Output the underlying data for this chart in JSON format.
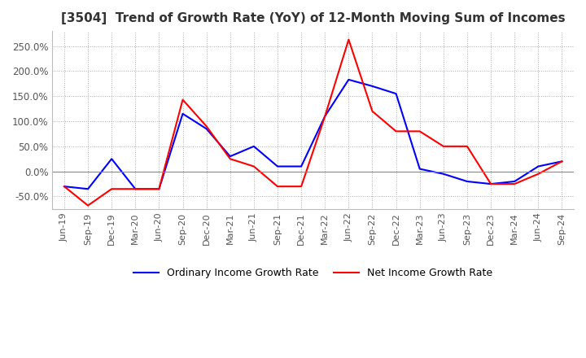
{
  "title": "[3504]  Trend of Growth Rate (YoY) of 12-Month Moving Sum of Incomes",
  "ylim": [
    -75,
    280
  ],
  "yticks": [
    -50,
    0,
    50,
    100,
    150,
    200,
    250
  ],
  "ytick_labels": [
    "-50.0%",
    "0.0%",
    "50.0%",
    "100.0%",
    "150.0%",
    "200.0%",
    "250.0%"
  ],
  "legend_labels": [
    "Ordinary Income Growth Rate",
    "Net Income Growth Rate"
  ],
  "ordinary_color": "#0000FF",
  "net_color": "#FF0000",
  "background_color": "#FFFFFF",
  "plot_bg_color": "#FFFFFF",
  "dates": [
    "Jun-19",
    "Sep-19",
    "Dec-19",
    "Mar-20",
    "Jun-20",
    "Sep-20",
    "Dec-20",
    "Mar-21",
    "Jun-21",
    "Sep-21",
    "Dec-21",
    "Mar-22",
    "Jun-22",
    "Sep-22",
    "Dec-22",
    "Mar-23",
    "Jun-23",
    "Sep-23",
    "Dec-23",
    "Mar-24",
    "Jun-24",
    "Sep-24"
  ],
  "ordinary_income": [
    -30,
    -35,
    25,
    -35,
    -35,
    115,
    85,
    30,
    50,
    10,
    10,
    110,
    183,
    170,
    155,
    5,
    -5,
    -20,
    -25,
    -20,
    10,
    20
  ],
  "net_income": [
    -30,
    -68,
    -35,
    -35,
    -35,
    143,
    90,
    25,
    10,
    -30,
    -30,
    110,
    263,
    120,
    80,
    80,
    50,
    50,
    -25,
    -25,
    -5,
    20
  ]
}
